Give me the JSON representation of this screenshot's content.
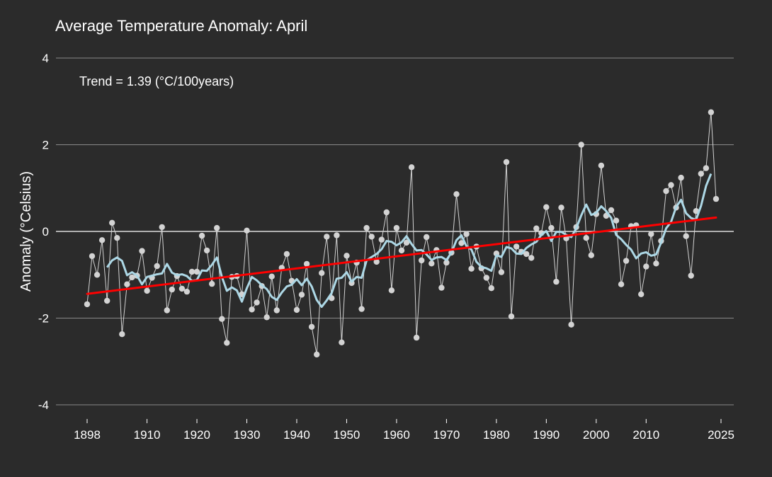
{
  "chart_data": {
    "type": "line",
    "title": "Average Temperature Anomaly: April",
    "ylabel": "Anomaly (°Celsius)",
    "xlabel": "",
    "annotation": "Trend =  1.39 (°C/100years)",
    "xlim": [
      1898,
      2025
    ],
    "ylim": [
      -4,
      4
    ],
    "x_ticks": [
      1898,
      1910,
      1920,
      1930,
      1940,
      1950,
      1960,
      1970,
      1980,
      1990,
      2000,
      2010,
      2025
    ],
    "y_ticks": [
      -4,
      -2,
      0,
      2,
      4
    ],
    "grid": true,
    "colors": {
      "background": "#2b2b2b",
      "grid": "#8a8a8a",
      "zero_line": "#ffffff",
      "annual": "#d3d3d3",
      "smoothed": "#add8e6",
      "trend": "#ff0000",
      "text": "#ffffff"
    },
    "series": [
      {
        "values": [
          -1.68,
          -0.57,
          -1.0,
          -0.2,
          -1.6,
          0.2,
          -0.15,
          -2.37,
          -1.22,
          -1.06,
          -1.02,
          -0.45,
          -1.37,
          -1.07,
          -0.8,
          0.1,
          -1.82,
          -1.34,
          -1.03,
          -1.32,
          -1.39,
          -0.93,
          -0.93,
          -0.1,
          -0.44,
          -1.21,
          0.08,
          -2.02,
          -2.57,
          -1.05,
          -1.03,
          -1.45,
          0.02,
          -1.8,
          -1.64,
          -1.26,
          -1.98,
          -1.04,
          -1.82,
          -0.84,
          -0.52,
          -1.14,
          -1.81,
          -1.46,
          -0.75,
          -2.2,
          -2.84,
          -0.96,
          -0.12,
          -1.54,
          -0.09,
          -2.56,
          -0.56,
          -1.19,
          -0.72,
          -1.79,
          0.08,
          -0.12,
          -0.7,
          -0.19,
          0.44,
          -1.36,
          0.08,
          -0.44,
          -0.26,
          1.48,
          -2.45,
          -0.67,
          -0.13,
          -0.74,
          -0.43,
          -1.3,
          -0.72,
          -0.49,
          0.86,
          -0.27,
          -0.06,
          -0.86,
          -0.35,
          -0.85,
          -1.07,
          -1.31,
          -0.51,
          -0.94,
          1.6,
          -1.96,
          -0.35,
          -0.47,
          -0.52,
          -0.61,
          0.07,
          -0.04,
          0.56,
          0.08,
          -1.16,
          0.55,
          -0.16,
          -2.15,
          0.1,
          2.0,
          -0.15,
          -0.55,
          0.4,
          1.52,
          0.36,
          0.49,
          0.25,
          -1.22,
          -0.68,
          0.12,
          0.14,
          -1.45,
          -0.81,
          -0.06,
          -0.74,
          -0.22,
          0.93,
          1.07,
          0.55,
          1.24,
          -0.11,
          -1.02,
          0.47,
          1.33,
          1.46,
          2.75,
          0.75
        ]
      },
      {
        "values": [
          null,
          null,
          null,
          null,
          -0.83,
          -0.67,
          -0.6,
          -0.68,
          -1.01,
          -0.94,
          -1.02,
          -1.22,
          -1.05,
          -1.02,
          -0.99,
          -0.97,
          -0.75,
          -0.95,
          -1.01,
          -0.99,
          -1.03,
          -1.14,
          -1.12,
          -0.9,
          -0.91,
          -0.77,
          -0.6,
          -1.05,
          -1.37,
          -1.29,
          -1.36,
          -1.62,
          -1.31,
          -1.05,
          -1.13,
          -1.24,
          -1.33,
          -1.51,
          -1.58,
          -1.41,
          -1.27,
          -1.23,
          -1.1,
          -1.24,
          -1.09,
          -1.27,
          -1.58,
          -1.74,
          -1.59,
          -1.42,
          -1.09,
          -1.07,
          -0.94,
          -1.16,
          -1.05,
          -1.07,
          -0.67,
          -0.59,
          -0.52,
          -0.41,
          -0.22,
          -0.24,
          -0.32,
          -0.25,
          -0.11,
          -0.29,
          -0.44,
          -0.43,
          -0.53,
          -0.66,
          -0.6,
          -0.59,
          -0.66,
          -0.49,
          -0.2,
          -0.09,
          -0.34,
          -0.42,
          -0.7,
          -0.82,
          -0.85,
          -0.91,
          -0.55,
          -0.59,
          -0.36,
          -0.39,
          -0.51,
          -0.52,
          -0.38,
          -0.3,
          -0.24,
          -0.08,
          0.01,
          -0.22,
          -0.01,
          -0.01,
          -0.08,
          -0.13,
          0.07,
          0.37,
          0.62,
          0.38,
          0.43,
          0.58,
          0.47,
          0.31,
          -0.08,
          -0.18,
          -0.31,
          -0.42,
          -0.62,
          -0.51,
          -0.48,
          -0.56,
          -0.53,
          -0.26,
          0.07,
          0.22,
          0.56,
          0.73,
          0.42,
          0.31,
          0.27,
          0.59,
          1.05,
          1.33,
          null
        ]
      },
      {
        "x": [
          1898,
          2024
        ],
        "values": [
          -1.44,
          0.32
        ]
      }
    ]
  }
}
